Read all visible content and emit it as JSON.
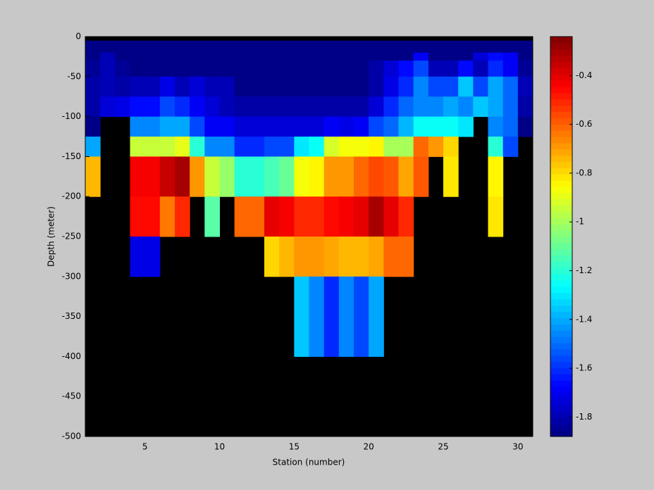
{
  "chart_data": {
    "type": "heatmap",
    "x_label": "Station (number)",
    "y_label": "Depth (meter)",
    "colormap": "jet",
    "background": "#000000",
    "x_edges": [
      1,
      2,
      3,
      4,
      5,
      6,
      7,
      8,
      9,
      10,
      11,
      12,
      13,
      14,
      15,
      16,
      17,
      18,
      19,
      20,
      21,
      22,
      23,
      24,
      25,
      26,
      27,
      28,
      29,
      30,
      31
    ],
    "y_edges": [
      0,
      -5,
      -20,
      -30,
      -50,
      -75,
      -100,
      -125,
      -150,
      -200,
      -250,
      -300,
      -400,
      -500
    ],
    "values": [
      [
        null,
        null,
        null,
        null,
        null,
        null,
        null,
        null,
        null,
        null,
        null,
        null,
        null,
        null,
        null,
        null,
        null,
        null,
        null,
        null,
        null,
        null,
        null,
        null,
        null,
        null,
        null,
        null,
        null,
        null
      ],
      [
        -1.86,
        -1.86,
        -1.86,
        -1.86,
        -1.86,
        -1.86,
        -1.86,
        -1.86,
        -1.86,
        -1.86,
        -1.86,
        -1.86,
        -1.86,
        -1.86,
        -1.86,
        -1.86,
        -1.86,
        -1.86,
        -1.86,
        -1.86,
        -1.86,
        -1.86,
        -1.86,
        -1.86,
        -1.86,
        -1.86,
        -1.86,
        -1.86,
        -1.86,
        -1.86
      ],
      [
        -1.86,
        -1.8,
        -1.86,
        -1.86,
        -1.86,
        -1.86,
        -1.86,
        -1.86,
        -1.86,
        -1.86,
        -1.86,
        -1.86,
        -1.86,
        -1.86,
        -1.86,
        -1.86,
        -1.86,
        -1.86,
        -1.86,
        -1.86,
        -1.86,
        -1.86,
        -1.7,
        -1.86,
        -1.86,
        -1.86,
        -1.75,
        -1.65,
        -1.7,
        -1.86
      ],
      [
        -1.85,
        -1.8,
        -1.85,
        -1.86,
        -1.86,
        -1.86,
        -1.86,
        -1.86,
        -1.86,
        -1.86,
        -1.86,
        -1.86,
        -1.86,
        -1.86,
        -1.86,
        -1.86,
        -1.86,
        -1.86,
        -1.86,
        -1.82,
        -1.75,
        -1.65,
        -1.55,
        -1.78,
        -1.78,
        -1.65,
        -1.8,
        -1.6,
        -1.7,
        -1.85
      ],
      [
        -1.82,
        -1.78,
        -1.82,
        -1.78,
        -1.78,
        -1.72,
        -1.78,
        -1.75,
        -1.8,
        -1.8,
        -1.86,
        -1.86,
        -1.86,
        -1.86,
        -1.86,
        -1.86,
        -1.86,
        -1.86,
        -1.86,
        -1.82,
        -1.72,
        -1.6,
        -1.45,
        -1.55,
        -1.55,
        -1.35,
        -1.55,
        -1.4,
        -1.5,
        -1.8
      ],
      [
        -1.82,
        -1.75,
        -1.72,
        -1.65,
        -1.65,
        -1.55,
        -1.6,
        -1.68,
        -1.75,
        -1.8,
        -1.82,
        -1.82,
        -1.82,
        -1.82,
        -1.82,
        -1.82,
        -1.82,
        -1.82,
        -1.82,
        -1.75,
        -1.6,
        -1.5,
        -1.45,
        -1.45,
        -1.4,
        -1.45,
        -1.35,
        -1.4,
        -1.5,
        -1.82
      ],
      [
        -1.86,
        null,
        null,
        -1.45,
        -1.45,
        -1.4,
        -1.4,
        -1.55,
        -1.68,
        -1.7,
        -1.75,
        -1.75,
        -1.75,
        -1.75,
        -1.75,
        -1.75,
        -1.68,
        -1.72,
        -1.68,
        -1.55,
        -1.5,
        -1.38,
        -1.25,
        -1.25,
        -1.25,
        -1.3,
        null,
        -1.45,
        -1.5,
        -1.86
      ],
      [
        -1.4,
        null,
        null,
        -0.95,
        -0.95,
        -0.95,
        -0.9,
        -1.2,
        -1.45,
        -1.45,
        -1.6,
        -1.6,
        -1.55,
        -1.55,
        -1.3,
        -1.25,
        -0.92,
        -0.88,
        -0.88,
        -0.85,
        -1.0,
        -1.0,
        -0.62,
        -0.7,
        -0.78,
        null,
        null,
        -1.2,
        -1.55,
        null
      ],
      [
        -0.75,
        null,
        null,
        -0.42,
        -0.42,
        -0.35,
        -0.3,
        -0.7,
        -0.95,
        -1.02,
        -1.2,
        -1.2,
        -1.15,
        -1.1,
        -0.88,
        -0.85,
        -0.7,
        -0.7,
        -0.62,
        -0.55,
        -0.58,
        -0.72,
        -0.58,
        null,
        -0.82,
        null,
        null,
        -0.85,
        null,
        null
      ],
      [
        null,
        null,
        null,
        -0.45,
        -0.45,
        -0.65,
        -0.52,
        null,
        -1.12,
        null,
        -0.6,
        -0.6,
        -0.4,
        -0.42,
        -0.52,
        -0.5,
        -0.45,
        -0.42,
        -0.4,
        -0.3,
        -0.4,
        -0.5,
        null,
        null,
        null,
        null,
        null,
        -0.82,
        null,
        null
      ],
      [
        null,
        null,
        null,
        -1.72,
        -1.72,
        null,
        null,
        null,
        null,
        null,
        null,
        null,
        -0.8,
        -0.75,
        -0.7,
        -0.68,
        -0.72,
        -0.75,
        -0.75,
        -0.72,
        -0.62,
        -0.62,
        null,
        null,
        null,
        null,
        null,
        null,
        null,
        null
      ],
      [
        null,
        null,
        null,
        null,
        null,
        null,
        null,
        null,
        null,
        null,
        null,
        null,
        null,
        null,
        -1.35,
        -1.45,
        -1.6,
        -1.45,
        -1.55,
        -1.4,
        null,
        null,
        null,
        null,
        null,
        null,
        null,
        null,
        null,
        null
      ],
      [
        null,
        null,
        null,
        null,
        null,
        null,
        null,
        null,
        null,
        null,
        null,
        null,
        null,
        null,
        null,
        null,
        null,
        null,
        null,
        null,
        null,
        null,
        null,
        null,
        null,
        null,
        null,
        null,
        null,
        null
      ]
    ],
    "xlim": [
      1,
      31
    ],
    "ylim": [
      -500,
      0
    ],
    "xticks": [
      5,
      10,
      15,
      20,
      25,
      30
    ],
    "yticks": [
      0,
      -50,
      -100,
      -150,
      -200,
      -250,
      -300,
      -350,
      -400,
      -450,
      -500
    ],
    "clim": [
      -1.88,
      -0.24
    ],
    "cticks": [
      -0.4,
      -0.6,
      -0.8,
      -1,
      -1.2,
      -1.4,
      -1.6,
      -1.8
    ]
  }
}
